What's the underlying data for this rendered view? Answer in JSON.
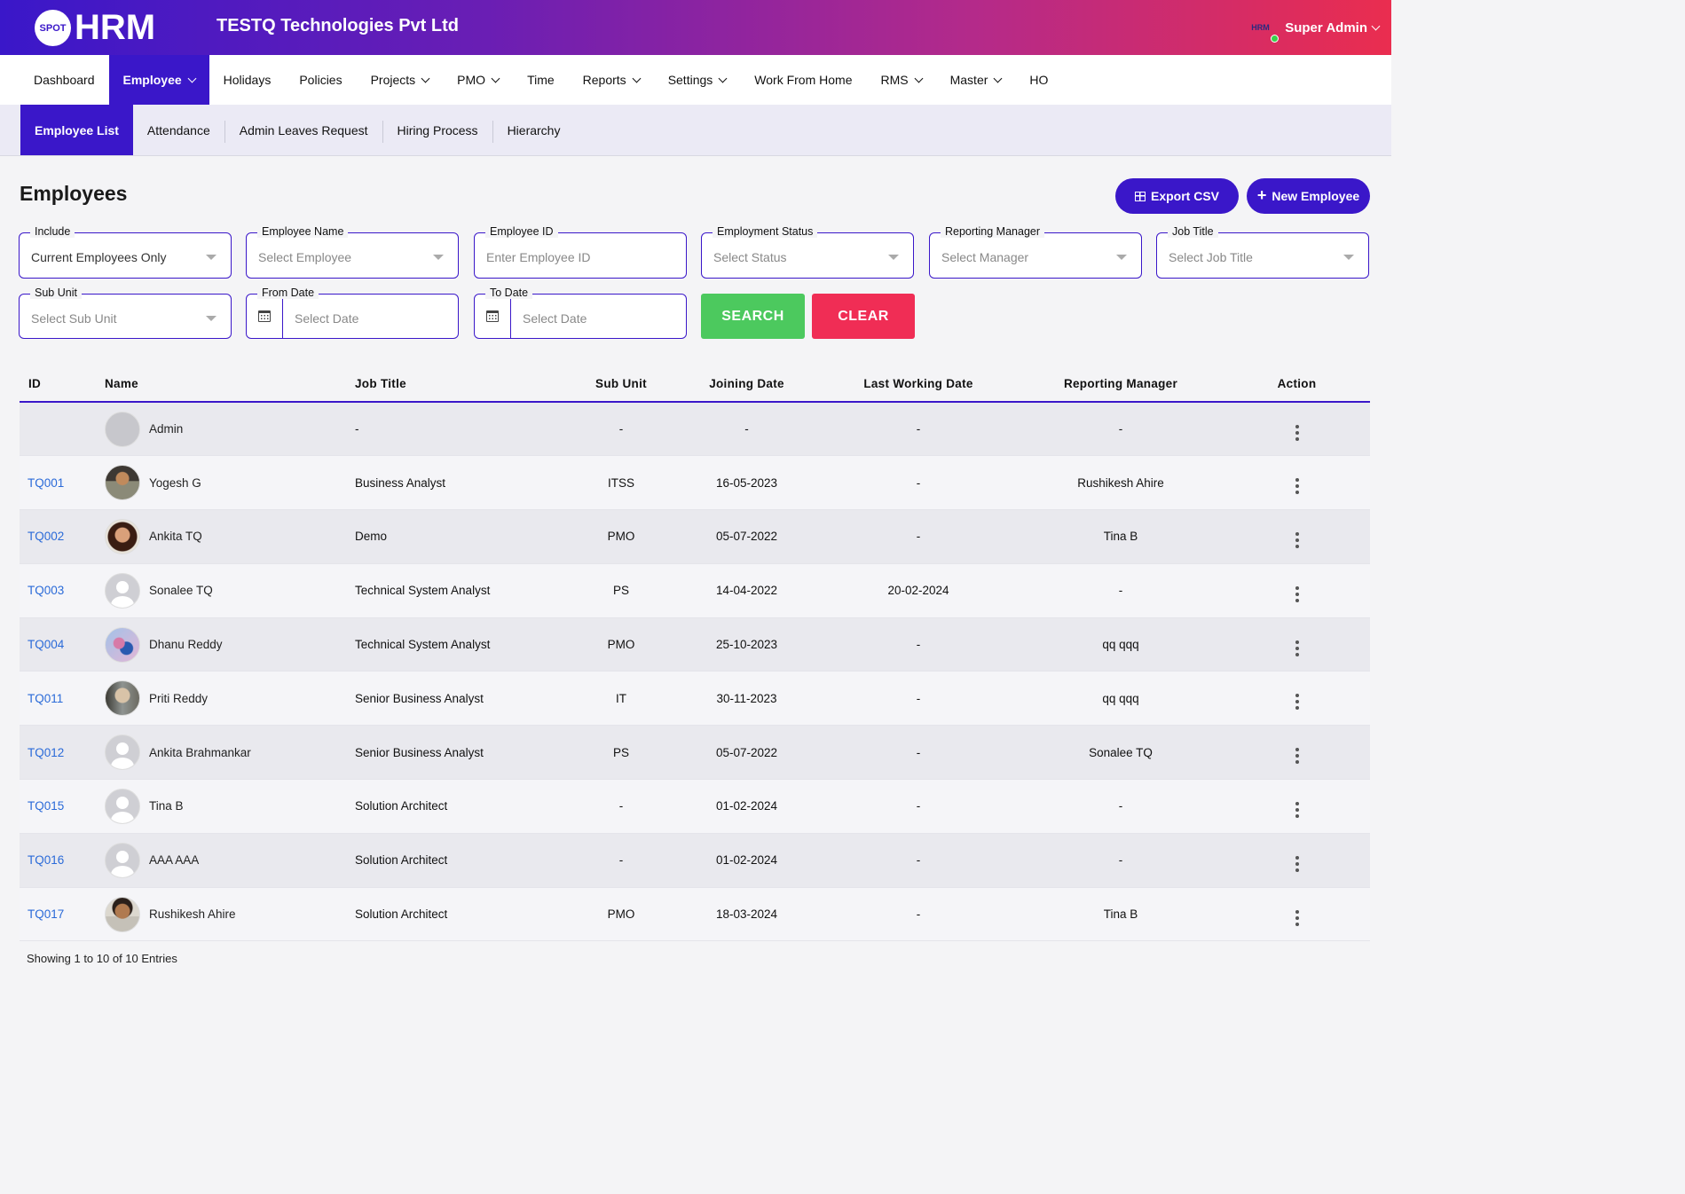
{
  "brand": {
    "logo_badge": "SPOT",
    "logo_text": "HRM",
    "company": "TESTQ Technologies Pvt Ltd",
    "accent": "#3a17c9"
  },
  "user": {
    "avatar_text": "HRM",
    "name": "Super Admin"
  },
  "main_nav": [
    {
      "label": "Dashboard",
      "dropdown": false,
      "active": false
    },
    {
      "label": "Employee",
      "dropdown": true,
      "active": true
    },
    {
      "label": "Holidays",
      "dropdown": false,
      "active": false
    },
    {
      "label": "Policies",
      "dropdown": false,
      "active": false
    },
    {
      "label": "Projects",
      "dropdown": true,
      "active": false
    },
    {
      "label": "PMO",
      "dropdown": true,
      "active": false
    },
    {
      "label": "Time",
      "dropdown": false,
      "active": false
    },
    {
      "label": "Reports",
      "dropdown": true,
      "active": false
    },
    {
      "label": "Settings",
      "dropdown": true,
      "active": false
    },
    {
      "label": "Work From Home",
      "dropdown": false,
      "active": false
    },
    {
      "label": "RMS",
      "dropdown": true,
      "active": false
    },
    {
      "label": "Master",
      "dropdown": true,
      "active": false
    },
    {
      "label": "HO",
      "dropdown": false,
      "active": false
    }
  ],
  "sub_nav": [
    "Employee List",
    "Attendance",
    "Admin Leaves Request",
    "Hiring Process",
    "Hierarchy"
  ],
  "page": {
    "title": "Employees",
    "export_label": "Export CSV",
    "new_label": "New Employee",
    "search_label": "SEARCH",
    "clear_label": "CLEAR",
    "footer": "Showing 1 to 10 of 10 Entries"
  },
  "filters": {
    "include": {
      "label": "Include",
      "value": "Current Employees Only"
    },
    "employee_name": {
      "label": "Employee Name",
      "placeholder": "Select Employee"
    },
    "employee_id": {
      "label": "Employee ID",
      "placeholder": "Enter Employee ID"
    },
    "employment_status": {
      "label": "Employment Status",
      "placeholder": "Select Status"
    },
    "reporting_manager": {
      "label": "Reporting Manager",
      "placeholder": "Select Manager"
    },
    "job_title": {
      "label": "Job Title",
      "placeholder": "Select Job Title"
    },
    "sub_unit": {
      "label": "Sub Unit",
      "placeholder": "Select Sub Unit"
    },
    "from_date": {
      "label": "From Date",
      "placeholder": "Select Date"
    },
    "to_date": {
      "label": "To Date",
      "placeholder": "Select Date"
    }
  },
  "table": {
    "columns": [
      "ID",
      "Name",
      "Job Title",
      "Sub Unit",
      "Joining Date",
      "Last Working Date",
      "Reporting Manager",
      "Action"
    ],
    "rows": [
      {
        "id": "",
        "name": "Admin",
        "avatar": "broken",
        "job": "-",
        "unit": "-",
        "join": "-",
        "last": "-",
        "manager": "-"
      },
      {
        "id": "TQ001",
        "name": "Yogesh G",
        "avatar": "photo1",
        "job": "Business Analyst",
        "unit": "ITSS",
        "join": "16-05-2023",
        "last": "-",
        "manager": "Rushikesh Ahire"
      },
      {
        "id": "TQ002",
        "name": "Ankita TQ",
        "avatar": "photo2",
        "job": "Demo",
        "unit": "PMO",
        "join": "05-07-2022",
        "last": "-",
        "manager": "Tina B"
      },
      {
        "id": "TQ003",
        "name": "Sonalee TQ",
        "avatar": "generic",
        "job": "Technical System Analyst",
        "unit": "PS",
        "join": "14-04-2022",
        "last": "20-02-2024",
        "manager": "-"
      },
      {
        "id": "TQ004",
        "name": "Dhanu Reddy",
        "avatar": "photo3",
        "job": "Technical System Analyst",
        "unit": "PMO",
        "join": "25-10-2023",
        "last": "-",
        "manager": "qq qqq"
      },
      {
        "id": "TQ011",
        "name": "Priti Reddy",
        "avatar": "photo4",
        "job": "Senior Business Analyst",
        "unit": "IT",
        "join": "30-11-2023",
        "last": "-",
        "manager": "qq qqq"
      },
      {
        "id": "TQ012",
        "name": "Ankita Brahmankar",
        "avatar": "generic",
        "job": "Senior Business Analyst",
        "unit": "PS",
        "join": "05-07-2022",
        "last": "-",
        "manager": "Sonalee TQ"
      },
      {
        "id": "TQ015",
        "name": "Tina B",
        "avatar": "generic",
        "job": "Solution Architect",
        "unit": "-",
        "join": "01-02-2024",
        "last": "-",
        "manager": "-"
      },
      {
        "id": "TQ016",
        "name": "AAA AAA",
        "avatar": "generic",
        "job": "Solution Architect",
        "unit": "-",
        "join": "01-02-2024",
        "last": "-",
        "manager": "-"
      },
      {
        "id": "TQ017",
        "name": "Rushikesh Ahire",
        "avatar": "photo5",
        "job": "Solution Architect",
        "unit": "PMO",
        "join": "18-03-2024",
        "last": "-",
        "manager": "Tina B"
      }
    ]
  }
}
